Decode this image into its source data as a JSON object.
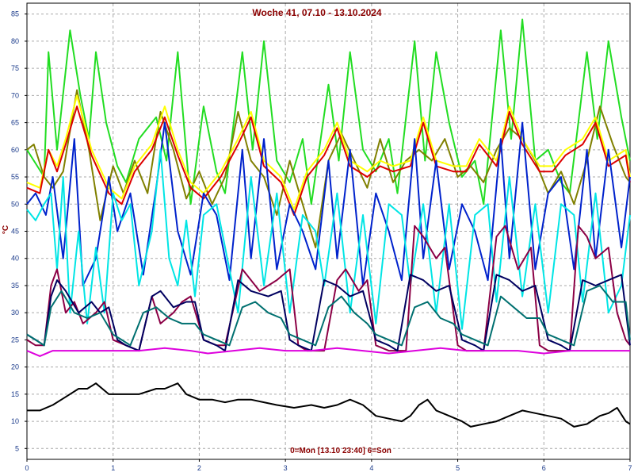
{
  "chart_data": {
    "type": "line",
    "title": "Woche 41, 07.10 - 13.10.2024",
    "footer": "0=Mon [13.10 23:40] 6=Son",
    "ylabel": "°C",
    "xlim": [
      0,
      7
    ],
    "ylim": [
      3,
      87
    ],
    "x_ticks": [
      0,
      1,
      2,
      3,
      4,
      5,
      6,
      7
    ],
    "y_ticks": [
      5,
      10,
      15,
      20,
      25,
      30,
      35,
      40,
      45,
      50,
      55,
      60,
      65,
      70,
      75,
      80,
      85
    ],
    "grid": true,
    "series": [
      {
        "color": "#22dd22",
        "x": [
          0,
          0.08,
          0.2,
          0.25,
          0.35,
          0.5,
          0.62,
          0.72,
          0.8,
          0.92,
          1.05,
          1.15,
          1.3,
          1.5,
          1.62,
          1.75,
          1.9,
          2.05,
          2.2,
          2.3,
          2.5,
          2.62,
          2.75,
          2.9,
          3.05,
          3.2,
          3.3,
          3.5,
          3.62,
          3.75,
          3.9,
          4.05,
          4.2,
          4.3,
          4.5,
          4.62,
          4.75,
          4.9,
          5.05,
          5.2,
          5.3,
          5.5,
          5.62,
          5.75,
          5.9,
          6.05,
          6.2,
          6.3,
          6.5,
          6.62,
          6.75,
          6.9,
          7
        ],
        "y": [
          60,
          58,
          55,
          78,
          60,
          82,
          70,
          62,
          78,
          65,
          57,
          54,
          62,
          66,
          58,
          78,
          50,
          68,
          56,
          52,
          78,
          60,
          80,
          58,
          54,
          62,
          50,
          72,
          58,
          78,
          60,
          56,
          62,
          52,
          80,
          58,
          78,
          65,
          55,
          58,
          50,
          82,
          62,
          84,
          58,
          60,
          54,
          52,
          78,
          62,
          80,
          66,
          58
        ]
      },
      {
        "color": "#808000",
        "x": [
          0,
          0.08,
          0.2,
          0.3,
          0.42,
          0.58,
          0.72,
          0.85,
          1.0,
          1.12,
          1.25,
          1.4,
          1.55,
          1.7,
          1.85,
          2.0,
          2.15,
          2.3,
          2.45,
          2.6,
          2.75,
          2.9,
          3.05,
          3.2,
          3.35,
          3.5,
          3.65,
          3.8,
          3.95,
          4.1,
          4.25,
          4.4,
          4.55,
          4.7,
          4.85,
          5.0,
          5.15,
          5.3,
          5.45,
          5.6,
          5.75,
          5.9,
          6.05,
          6.2,
          6.35,
          6.5,
          6.65,
          6.8,
          6.95,
          7
        ],
        "y": [
          60,
          61,
          55,
          53,
          56,
          71,
          60,
          47,
          57,
          52,
          58,
          52,
          67,
          60,
          51,
          56,
          50,
          55,
          67,
          58,
          55,
          48,
          58,
          50,
          42,
          58,
          63,
          58,
          53,
          62,
          54,
          58,
          60,
          58,
          62,
          55,
          57,
          54,
          60,
          64,
          62,
          58,
          52,
          56,
          50,
          58,
          68,
          61,
          55,
          54
        ]
      },
      {
        "color": "#ffff00",
        "x": [
          0,
          0.15,
          0.25,
          0.35,
          0.45,
          0.58,
          0.75,
          0.95,
          1.1,
          1.25,
          1.45,
          1.6,
          1.75,
          1.9,
          2.05,
          2.25,
          2.45,
          2.6,
          2.75,
          2.95,
          3.1,
          3.25,
          3.45,
          3.6,
          3.75,
          3.95,
          4.1,
          4.25,
          4.45,
          4.6,
          4.75,
          4.95,
          5.1,
          5.25,
          5.45,
          5.6,
          5.75,
          5.95,
          6.1,
          6.25,
          6.45,
          6.6,
          6.75,
          6.95,
          7
        ],
        "y": [
          54,
          53,
          60,
          57,
          62,
          70,
          60,
          53,
          51,
          57,
          61,
          68,
          60,
          54,
          52,
          56,
          62,
          67,
          58,
          55,
          49,
          56,
          60,
          65,
          58,
          56,
          58,
          57,
          58,
          66,
          58,
          57,
          57,
          62,
          58,
          68,
          62,
          57,
          57,
          60,
          62,
          66,
          58,
          60,
          55
        ]
      },
      {
        "color": "#dd0000",
        "x": [
          0,
          0.15,
          0.25,
          0.35,
          0.45,
          0.58,
          0.75,
          0.95,
          1.1,
          1.25,
          1.45,
          1.6,
          1.75,
          1.9,
          2.05,
          2.25,
          2.45,
          2.6,
          2.75,
          2.95,
          3.1,
          3.25,
          3.45,
          3.6,
          3.75,
          3.95,
          4.1,
          4.25,
          4.45,
          4.6,
          4.75,
          4.95,
          5.1,
          5.25,
          5.45,
          5.6,
          5.75,
          5.95,
          6.1,
          6.25,
          6.45,
          6.6,
          6.75,
          6.95,
          7
        ],
        "y": [
          53,
          52,
          60,
          56,
          61,
          68,
          59,
          52,
          50,
          56,
          60,
          66,
          59,
          53,
          51,
          55,
          61,
          66,
          57,
          54,
          48,
          55,
          59,
          64,
          57,
          55,
          57,
          56,
          57,
          65,
          57,
          56,
          56,
          61,
          57,
          67,
          61,
          56,
          56,
          59,
          61,
          65,
          57,
          59,
          54
        ]
      },
      {
        "color": "#0022cc",
        "x": [
          0,
          0.1,
          0.22,
          0.3,
          0.42,
          0.55,
          0.65,
          0.8,
          0.95,
          1.05,
          1.2,
          1.35,
          1.5,
          1.6,
          1.75,
          1.9,
          2.05,
          2.2,
          2.35,
          2.5,
          2.6,
          2.75,
          2.9,
          3.05,
          3.2,
          3.35,
          3.5,
          3.6,
          3.75,
          3.9,
          4.05,
          4.2,
          4.35,
          4.5,
          4.6,
          4.75,
          4.9,
          5.05,
          5.2,
          5.35,
          5.5,
          5.6,
          5.75,
          5.9,
          6.05,
          6.2,
          6.35,
          6.5,
          6.6,
          6.75,
          6.9,
          7
        ],
        "y": [
          50,
          52,
          48,
          55,
          40,
          62,
          35,
          40,
          55,
          45,
          52,
          37,
          53,
          65,
          45,
          37,
          52,
          48,
          36,
          60,
          40,
          62,
          38,
          50,
          45,
          38,
          58,
          40,
          60,
          35,
          52,
          45,
          36,
          62,
          40,
          58,
          38,
          50,
          45,
          36,
          62,
          40,
          65,
          38,
          52,
          55,
          38,
          60,
          40,
          60,
          42,
          55
        ]
      },
      {
        "color": "#00e5e5",
        "x": [
          0,
          0.1,
          0.2,
          0.28,
          0.35,
          0.42,
          0.5,
          0.6,
          0.7,
          0.8,
          0.9,
          1.0,
          1.1,
          1.2,
          1.3,
          1.45,
          1.55,
          1.65,
          1.75,
          1.85,
          1.95,
          2.05,
          2.2,
          2.35,
          2.45,
          2.6,
          2.75,
          2.9,
          3.05,
          3.2,
          3.35,
          3.45,
          3.6,
          3.75,
          3.9,
          4.05,
          4.2,
          4.35,
          4.45,
          4.6,
          4.75,
          4.9,
          5.05,
          5.2,
          5.35,
          5.45,
          5.6,
          5.75,
          5.9,
          6.05,
          6.2,
          6.35,
          6.45,
          6.6,
          6.75,
          6.9,
          7
        ],
        "y": [
          49,
          47,
          50,
          52,
          38,
          55,
          30,
          45,
          28,
          42,
          30,
          52,
          47,
          50,
          35,
          45,
          60,
          40,
          35,
          47,
          33,
          48,
          50,
          38,
          30,
          55,
          35,
          52,
          30,
          48,
          45,
          35,
          52,
          30,
          48,
          28,
          50,
          48,
          35,
          50,
          30,
          50,
          27,
          48,
          50,
          32,
          55,
          33,
          50,
          30,
          50,
          48,
          32,
          52,
          30,
          35,
          48
        ]
      },
      {
        "color": "#8b0045",
        "x": [
          0,
          0.1,
          0.2,
          0.28,
          0.35,
          0.45,
          0.55,
          0.65,
          0.8,
          0.9,
          1.0,
          1.15,
          1.3,
          1.45,
          1.55,
          1.7,
          1.8,
          1.9,
          2.05,
          2.2,
          2.3,
          2.5,
          2.7,
          2.9,
          3.05,
          3.15,
          3.25,
          3.35,
          3.45,
          3.6,
          3.7,
          3.85,
          3.95,
          4.05,
          4.2,
          4.3,
          4.4,
          4.5,
          4.6,
          4.75,
          4.85,
          5.0,
          5.1,
          5.2,
          5.3,
          5.45,
          5.55,
          5.7,
          5.85,
          5.95,
          6.05,
          6.2,
          6.3,
          6.4,
          6.5,
          6.6,
          6.75,
          6.85,
          6.95,
          7
        ],
        "y": [
          25,
          24,
          24,
          35,
          38,
          30,
          32,
          28,
          30,
          32,
          25,
          24,
          23,
          33,
          28,
          30,
          32,
          33,
          25,
          24,
          24,
          38,
          34,
          36,
          38,
          24,
          23,
          23,
          23,
          36,
          38,
          34,
          36,
          24,
          23,
          23,
          23,
          46,
          44,
          40,
          42,
          24,
          23,
          23,
          23,
          44,
          46,
          38,
          42,
          24,
          23,
          23,
          23,
          46,
          44,
          40,
          42,
          30,
          25,
          24
        ]
      },
      {
        "color": "#000060",
        "x": [
          0,
          0.1,
          0.2,
          0.28,
          0.35,
          0.45,
          0.6,
          0.75,
          0.85,
          0.95,
          1.05,
          1.15,
          1.3,
          1.45,
          1.55,
          1.7,
          1.85,
          1.95,
          2.05,
          2.2,
          2.3,
          2.45,
          2.6,
          2.8,
          2.95,
          3.05,
          3.15,
          3.3,
          3.45,
          3.6,
          3.75,
          3.9,
          4.05,
          4.2,
          4.3,
          4.45,
          4.6,
          4.75,
          4.9,
          5.05,
          5.2,
          5.3,
          5.45,
          5.6,
          5.75,
          5.9,
          6.05,
          6.2,
          6.3,
          6.45,
          6.6,
          6.75,
          6.9,
          7
        ],
        "y": [
          26,
          25,
          24,
          33,
          36,
          34,
          30,
          32,
          30,
          31,
          25,
          24,
          23,
          33,
          34,
          31,
          32,
          32,
          25,
          24,
          23,
          36,
          34,
          33,
          34,
          25,
          24,
          23,
          36,
          35,
          33,
          34,
          25,
          24,
          23,
          37,
          36,
          34,
          35,
          25,
          24,
          23,
          37,
          36,
          34,
          35,
          25,
          24,
          23,
          36,
          35,
          36,
          37,
          24
        ]
      },
      {
        "color": "#007070",
        "x": [
          0,
          0.1,
          0.2,
          0.28,
          0.4,
          0.55,
          0.7,
          0.85,
          1.0,
          1.1,
          1.2,
          1.35,
          1.5,
          1.65,
          1.8,
          1.95,
          2.05,
          2.2,
          2.35,
          2.5,
          2.65,
          2.8,
          2.95,
          3.05,
          3.2,
          3.35,
          3.5,
          3.65,
          3.8,
          3.95,
          4.05,
          4.2,
          4.35,
          4.5,
          4.65,
          4.8,
          4.95,
          5.05,
          5.2,
          5.35,
          5.5,
          5.65,
          5.8,
          5.95,
          6.05,
          6.2,
          6.35,
          6.5,
          6.65,
          6.8,
          6.95,
          7
        ],
        "y": [
          26,
          25,
          24,
          31,
          34,
          30,
          29,
          30,
          26,
          25,
          24,
          30,
          31,
          29,
          28,
          28,
          26,
          25,
          24,
          31,
          32,
          30,
          29,
          26,
          25,
          24,
          31,
          33,
          30,
          28,
          26,
          25,
          24,
          31,
          32,
          29,
          28,
          26,
          25,
          24,
          33,
          31,
          29,
          29,
          26,
          25,
          24,
          34,
          35,
          32,
          32,
          25
        ]
      },
      {
        "color": "#dd00dd",
        "x": [
          0,
          0.15,
          0.3,
          0.5,
          0.8,
          1.0,
          1.3,
          1.6,
          1.9,
          2.1,
          2.4,
          2.7,
          3.0,
          3.3,
          3.6,
          3.9,
          4.2,
          4.5,
          4.8,
          5.1,
          5.4,
          5.7,
          6.0,
          6.3,
          6.6,
          6.9,
          7
        ],
        "y": [
          23,
          22,
          23,
          23,
          23,
          23,
          23,
          23.5,
          23,
          22.5,
          23,
          23.5,
          23,
          23,
          23.5,
          23,
          22.5,
          23,
          23.5,
          23,
          23,
          23,
          22.5,
          23,
          23,
          23,
          23
        ]
      },
      {
        "color": "#000000",
        "x": [
          0,
          0.15,
          0.3,
          0.45,
          0.6,
          0.7,
          0.8,
          0.95,
          1.1,
          1.3,
          1.5,
          1.6,
          1.75,
          1.85,
          2.0,
          2.15,
          2.3,
          2.45,
          2.6,
          2.75,
          2.9,
          3.1,
          3.3,
          3.45,
          3.6,
          3.75,
          3.9,
          4.05,
          4.2,
          4.35,
          4.45,
          4.55,
          4.65,
          4.75,
          4.9,
          5.05,
          5.15,
          5.3,
          5.45,
          5.6,
          5.75,
          5.9,
          6.05,
          6.2,
          6.35,
          6.5,
          6.65,
          6.75,
          6.85,
          6.95,
          7
        ],
        "y": [
          12,
          12,
          13,
          14.5,
          16,
          16,
          17,
          15,
          15,
          15,
          16,
          16,
          17,
          15,
          14,
          14,
          13.5,
          14,
          14,
          13.5,
          13,
          12.5,
          13,
          12.5,
          13,
          14,
          13,
          11,
          10.5,
          10,
          11,
          13,
          14,
          12,
          11,
          10,
          9,
          9.5,
          10,
          11,
          12,
          11.5,
          11,
          10.5,
          9,
          9.5,
          11,
          11.5,
          12.5,
          10,
          9.5
        ]
      }
    ]
  }
}
